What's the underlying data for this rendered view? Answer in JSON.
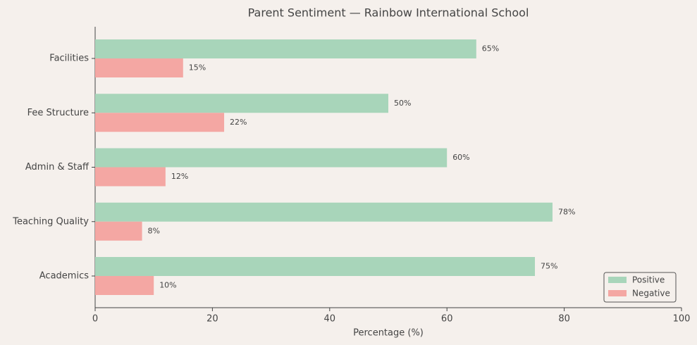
{
  "chart_data": {
    "type": "bar",
    "orientation": "horizontal",
    "title": "Parent Sentiment — Rainbow International School",
    "x_label": "Percentage (%)",
    "categories": [
      "Facilities",
      "Fee Structure",
      "Admin & Staff",
      "Teaching Quality",
      "Academics"
    ],
    "series": [
      {
        "name": "Positive",
        "color": "#a8d5ba",
        "values": [
          65,
          50,
          60,
          78,
          75
        ],
        "value_labels": [
          "65%",
          "50%",
          "60%",
          "78%",
          "75%"
        ]
      },
      {
        "name": "Negative",
        "color": "#f4a7a3",
        "values": [
          15,
          22,
          12,
          8,
          10
        ],
        "value_labels": [
          "15%",
          "22%",
          "12%",
          "8%",
          "10%"
        ]
      }
    ],
    "xlim": [
      0,
      100
    ],
    "xticks": [
      0,
      20,
      40,
      60,
      80,
      100
    ],
    "grid": false,
    "legend": "lower right"
  }
}
